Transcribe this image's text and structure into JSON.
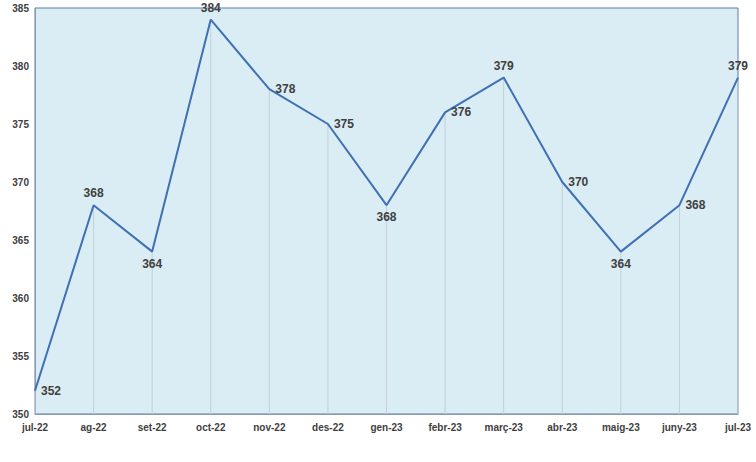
{
  "chart_data": {
    "type": "line",
    "categories": [
      "jul-22",
      "ag-22",
      "set-22",
      "oct-22",
      "nov-22",
      "des-22",
      "gen-23",
      "febr-23",
      "març-23",
      "abr-23",
      "maig-23",
      "juny-23",
      "jul-23"
    ],
    "values": [
      352,
      368,
      364,
      384,
      378,
      375,
      368,
      376,
      379,
      370,
      364,
      368,
      379
    ],
    "color": "#3f6fb5",
    "ylim": [
      350,
      385
    ],
    "yticks": [
      350,
      355,
      360,
      365,
      370,
      375,
      380,
      385
    ],
    "grid": false,
    "data_labels": true
  }
}
